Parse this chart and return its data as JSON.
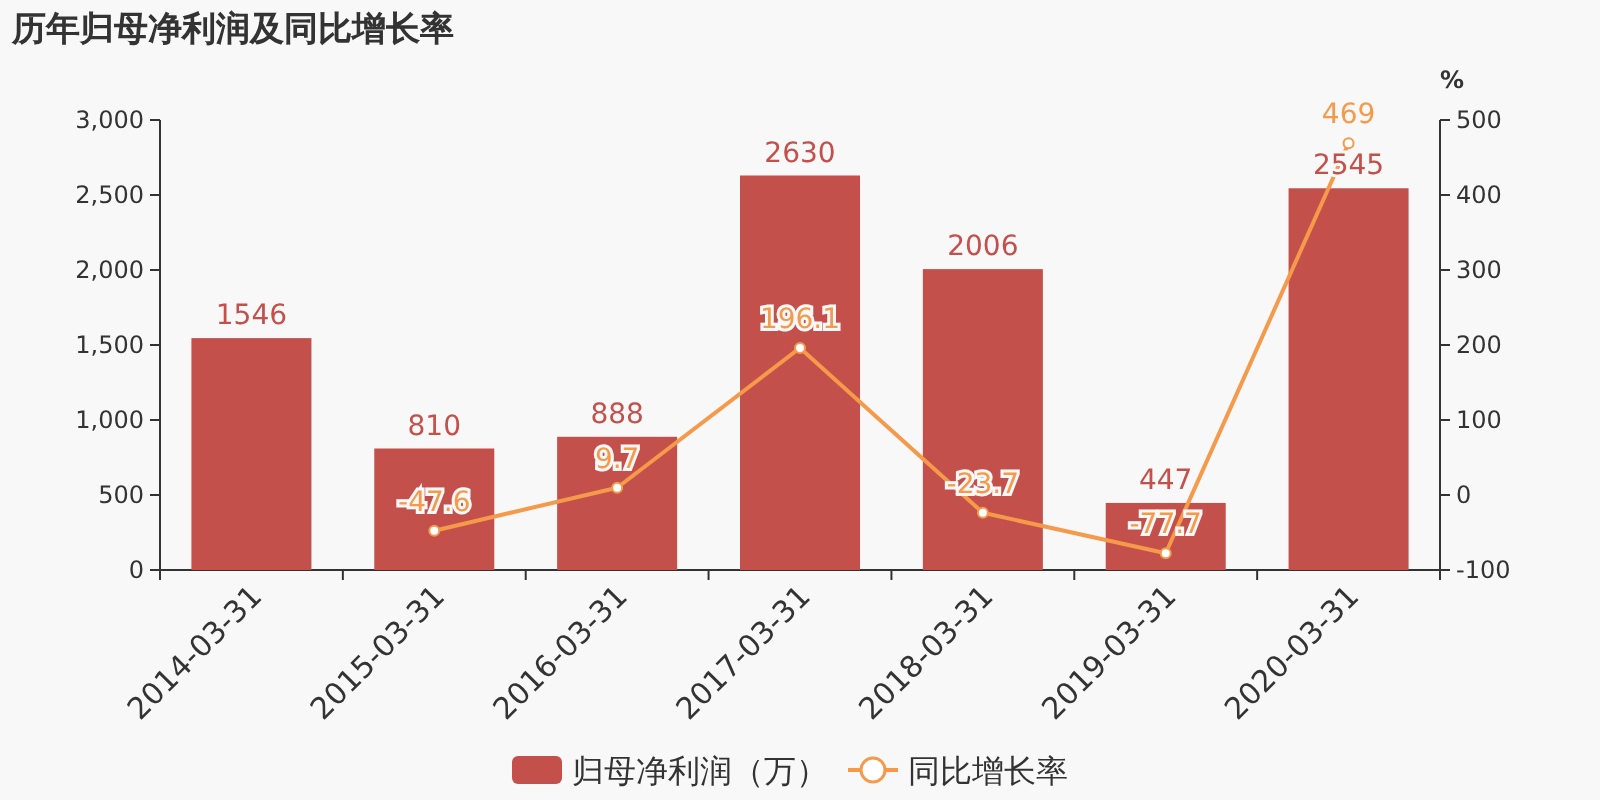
{
  "chart_data": {
    "type": "bar",
    "title": "历年归母净利润及同比增长率",
    "categories": [
      "2014-03-31",
      "2015-03-31",
      "2016-03-31",
      "2017-03-31",
      "2018-03-31",
      "2019-03-31",
      "2020-03-31"
    ],
    "series": [
      {
        "name": "归母净利润（万）",
        "color": "#c4504c",
        "values": [
          1546,
          810,
          888,
          2630,
          2006,
          447,
          2545
        ]
      },
      {
        "name": "同比增长率",
        "type": "line",
        "axis": "y2",
        "color": "#f5994a",
        "values": [
          null,
          -47.6,
          9.7,
          196.1,
          -23.7,
          -77.7,
          469
        ]
      }
    ],
    "ylim": [
      0,
      3000
    ],
    "yticks": [
      0,
      500,
      {
        "value": 1000,
        "label": "1,000"
      },
      {
        "value": 1500,
        "label": "1,500"
      },
      {
        "value": 2000,
        "label": "2,000"
      },
      {
        "value": 2500,
        "label": "2,500"
      },
      {
        "value": 3000,
        "label": "3,000"
      }
    ],
    "y2lim": [
      -100,
      500
    ],
    "y2ticks": [
      -100,
      0,
      100,
      200,
      300,
      400,
      500
    ],
    "y2label": "%",
    "data_labels": true,
    "legend": "bottom",
    "marker": "circle",
    "grid": false
  }
}
